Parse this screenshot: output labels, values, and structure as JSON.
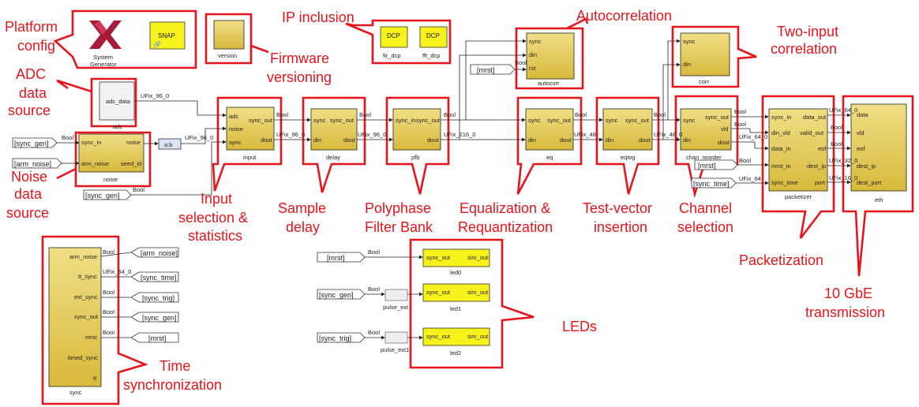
{
  "annotations": {
    "platform_config": [
      "Platform",
      "config"
    ],
    "adc_source": [
      "ADC",
      "data",
      "source"
    ],
    "noise_source": [
      "Noise",
      "data",
      "source"
    ],
    "firmware_versioning": [
      "Firmware",
      "versioning"
    ],
    "ip_inclusion": "IP inclusion",
    "autocorrelation": "Autocorrelation",
    "two_input_correlation": [
      "Two-input",
      "correlation"
    ],
    "input_selection": [
      "Input",
      "selection &",
      "statistics"
    ],
    "sample_delay": [
      "Sample",
      "delay"
    ],
    "polyphase": [
      "Polyphase",
      "Filter Bank"
    ],
    "equalization": [
      "Equalization &",
      "Requantization"
    ],
    "test_vector": [
      "Test-vector",
      "insertion"
    ],
    "channel_selection": [
      "Channel",
      "selection"
    ],
    "packetization": "Packetization",
    "gbe": [
      "10 GbE",
      "transmission"
    ],
    "time_sync": [
      "Time",
      "synchronization"
    ],
    "leds": "LEDs"
  },
  "platform": {
    "system_generator": [
      "System",
      "Generator"
    ],
    "snap": "SNAP",
    "version": "version"
  },
  "ip": {
    "dcp": "DCP",
    "fir": "fir_dcp",
    "fft": "fft_dcp"
  },
  "blocks": {
    "adc": {
      "name": "adc",
      "port": "adc_data"
    },
    "noise": {
      "name": "noise",
      "in": [
        "sync_in",
        "arm_noise"
      ],
      "out": [
        "noise",
        "seed_id"
      ]
    },
    "absb": "a:b",
    "input": {
      "name": "input",
      "in": [
        "adc",
        "noise",
        "sync"
      ],
      "out": [
        "sync_out",
        "dout"
      ]
    },
    "delay": {
      "name": "delay",
      "in": [
        "sync",
        "din"
      ],
      "out": [
        "sync_out",
        "dout"
      ]
    },
    "pfb": {
      "name": "pfb",
      "in": [
        "sync_in"
      ],
      "out": [
        "sync_out",
        "dout"
      ]
    },
    "eq": {
      "name": "eq",
      "in": [
        "sync",
        "din"
      ],
      "out": [
        "sync_out",
        "dout"
      ]
    },
    "eqtvg": {
      "name": "eqtvg",
      "in": [
        "sync",
        "din"
      ],
      "out": [
        "sync_out",
        "dout"
      ]
    },
    "chan_reorder": {
      "name": "chan_reorder",
      "in": [
        "sync",
        "din"
      ],
      "out": [
        "sync_out",
        "vld",
        "dout"
      ]
    },
    "autocorr": {
      "name": "autocorr",
      "in": [
        "sync",
        "din",
        "rst"
      ]
    },
    "corr": {
      "name": "corr",
      "in": [
        "sync",
        "din"
      ]
    },
    "packetizer": {
      "name": "packetizer",
      "in": [
        "sync_in",
        "din_vld",
        "data_in",
        "mrst_in",
        "sync_time"
      ],
      "out": [
        "data_out",
        "valid_out",
        "eof",
        "dest_ip",
        "port"
      ]
    },
    "eth": {
      "name": "eth",
      "in": [
        "data",
        "vld",
        "eof",
        "dest_ip",
        "dest_port"
      ]
    },
    "sync": {
      "name": "sync",
      "out": [
        "arm_noise",
        "tt_sync",
        "ext_sync",
        "sync_out",
        "mrst",
        "timed_sync",
        "tt"
      ]
    },
    "leds": [
      {
        "name": "led0",
        "in": "sync_out",
        "out": "sim_out"
      },
      {
        "name": "led1",
        "in": "sync_out",
        "out": "sim_out"
      },
      {
        "name": "led2",
        "in": "sync_out",
        "out": "sim_out"
      }
    ],
    "pulse": [
      "pulse_ext",
      "pulse_ext1"
    ]
  },
  "tags": {
    "sync_gen": "[sync_gen]",
    "arm_noise_in": "[arm_noise]",
    "sync_gen2": "[sync_gen]",
    "mrst_top": "[mrst]",
    "mrst_cr": "[mrst]",
    "sync_time_in": "[sync_time]",
    "out_arm_noise": "[arm_noise]",
    "out_sync_time": "[sync_time]",
    "out_sync_trig": "[sync_trig]",
    "out_sync_gen": "[sync_gen]",
    "out_mrst": "[mrst]",
    "led_mrst": "[mrst]",
    "led_sync_gen": "[sync_gen]",
    "led_sync_trig": "[sync_trig]"
  },
  "signals": {
    "bool": "Bool",
    "ufix96": "UFix_96_0",
    "ufix96b": "UFix_96_0",
    "ufix96c": "UFix_96_0",
    "ufix216": "UFix_216_0",
    "ufix48a": "UFix_48",
    "ufix48b": "UFix_48_0",
    "ufix64a": "UFix_64_0",
    "ufix64b": "UFix_64_0",
    "ufix64c": "UFix_64_0",
    "ufix64d": "UFix_64",
    "ufix32": "UFix_32_0",
    "ufix16": "UFix_16_0"
  },
  "colors": {
    "highlight": "#e8141b",
    "block_gold": "#e6cc55",
    "block_yellow": "#f7f21c"
  }
}
